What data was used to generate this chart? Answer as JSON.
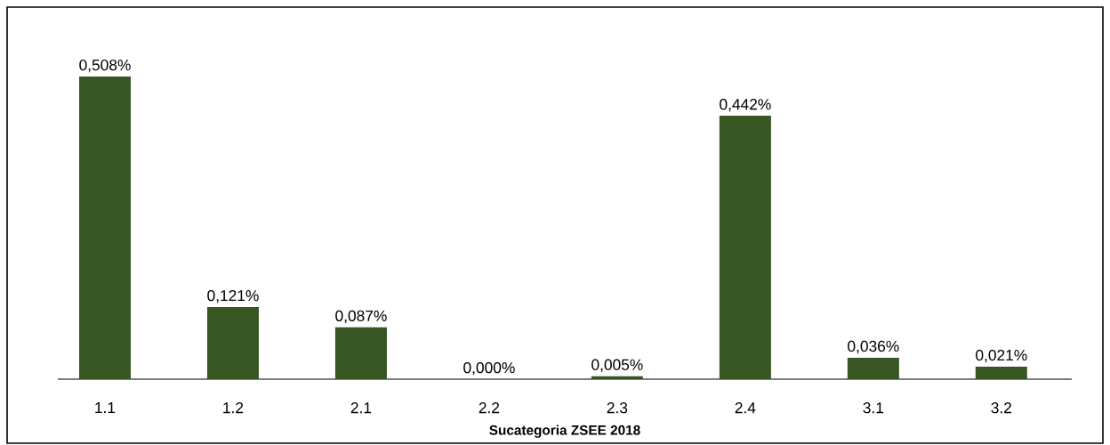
{
  "chart_data": {
    "type": "bar",
    "xlabel": "Sucategoria ZSEE 2018",
    "categories": [
      "1.1",
      "1.2",
      "2.1",
      "2.2",
      "2.3",
      "2.4",
      "3.1",
      "3.2"
    ],
    "values": [
      0.508,
      0.121,
      0.087,
      0.0,
      0.005,
      0.442,
      0.036,
      0.021
    ],
    "value_labels": [
      "0,508%",
      "0,121%",
      "0,087%",
      "0,000%",
      "0,005%",
      "0,442%",
      "0,036%",
      "0,021%"
    ],
    "color": "#375623"
  }
}
